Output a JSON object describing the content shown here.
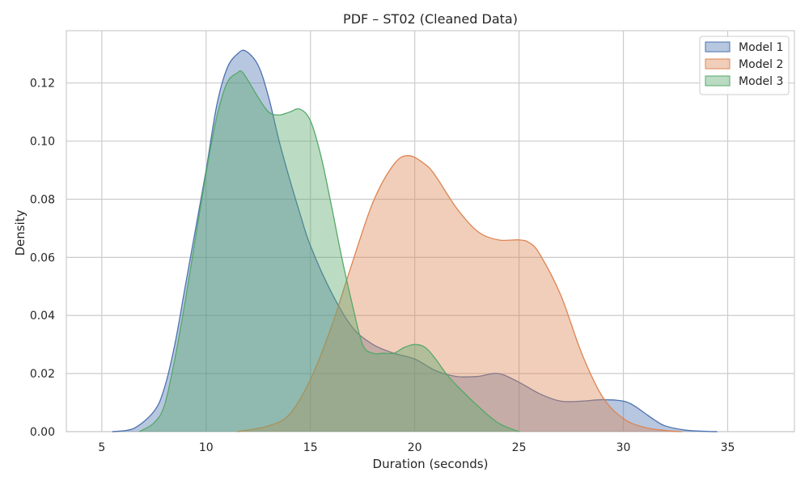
{
  "chart_data": {
    "type": "area",
    "title": "PDF – ST02 (Cleaned Data)",
    "xlabel": "Duration (seconds)",
    "ylabel": "Density",
    "xlim": [
      3.3,
      38.2
    ],
    "ylim": [
      0,
      0.138
    ],
    "xticks": [
      5,
      10,
      15,
      20,
      25,
      30,
      35
    ],
    "yticks": [
      0.0,
      0.02,
      0.04,
      0.06,
      0.08,
      0.1,
      0.12
    ],
    "xtick_labels": [
      "5",
      "10",
      "15",
      "20",
      "25",
      "30",
      "35"
    ],
    "ytick_labels": [
      "0.00",
      "0.02",
      "0.04",
      "0.06",
      "0.08",
      "0.10",
      "0.12"
    ],
    "grid": true,
    "legend_position": "top-right",
    "series": [
      {
        "name": "Model 1",
        "color": "#4C72B0",
        "x": [
          5.5,
          6.5,
          7.5,
          8,
          8.5,
          9,
          9.5,
          10,
          10.5,
          11,
          11.5,
          11.9,
          12.5,
          13,
          13.5,
          14,
          14.5,
          15,
          16,
          17,
          18,
          19,
          20,
          21,
          22,
          23,
          24,
          25,
          26,
          27,
          28,
          29,
          30,
          30.5,
          31,
          31.5,
          32,
          33,
          34,
          34.5
        ],
        "y": [
          0,
          0.001,
          0.007,
          0.015,
          0.03,
          0.05,
          0.07,
          0.09,
          0.112,
          0.125,
          0.13,
          0.131,
          0.126,
          0.115,
          0.1,
          0.087,
          0.075,
          0.064,
          0.048,
          0.036,
          0.03,
          0.027,
          0.025,
          0.021,
          0.019,
          0.019,
          0.02,
          0.017,
          0.013,
          0.0105,
          0.0105,
          0.011,
          0.0105,
          0.009,
          0.0065,
          0.004,
          0.002,
          0.0005,
          0.0001,
          0
        ]
      },
      {
        "name": "Model 2",
        "color": "#DD8452",
        "x": [
          11.5,
          13,
          14,
          15,
          16,
          17,
          18,
          19,
          19.7,
          20.5,
          21,
          22,
          23,
          24,
          25,
          25.5,
          26,
          27,
          28,
          29,
          30,
          31,
          32,
          32.8
        ],
        "y": [
          0,
          0.002,
          0.006,
          0.018,
          0.036,
          0.058,
          0.079,
          0.092,
          0.095,
          0.092,
          0.088,
          0.077,
          0.069,
          0.066,
          0.066,
          0.065,
          0.061,
          0.047,
          0.027,
          0.012,
          0.0045,
          0.0015,
          0.0004,
          0
        ]
      },
      {
        "name": "Model 3",
        "color": "#55A868",
        "x": [
          6.8,
          7.5,
          8,
          8.5,
          9,
          9.5,
          10,
          10.5,
          11,
          11.5,
          11.7,
          12,
          12.5,
          13,
          13.5,
          14,
          14.5,
          15,
          15.5,
          16,
          16.5,
          17,
          17.5,
          18,
          18.5,
          19,
          19.5,
          20,
          20.5,
          21,
          21.5,
          22,
          23,
          24,
          25
        ],
        "y": [
          0,
          0.003,
          0.009,
          0.025,
          0.045,
          0.067,
          0.089,
          0.108,
          0.12,
          0.1235,
          0.124,
          0.121,
          0.115,
          0.11,
          0.109,
          0.11,
          0.111,
          0.107,
          0.095,
          0.078,
          0.06,
          0.044,
          0.03,
          0.027,
          0.027,
          0.027,
          0.029,
          0.03,
          0.029,
          0.025,
          0.02,
          0.016,
          0.009,
          0.003,
          0
        ]
      }
    ]
  }
}
